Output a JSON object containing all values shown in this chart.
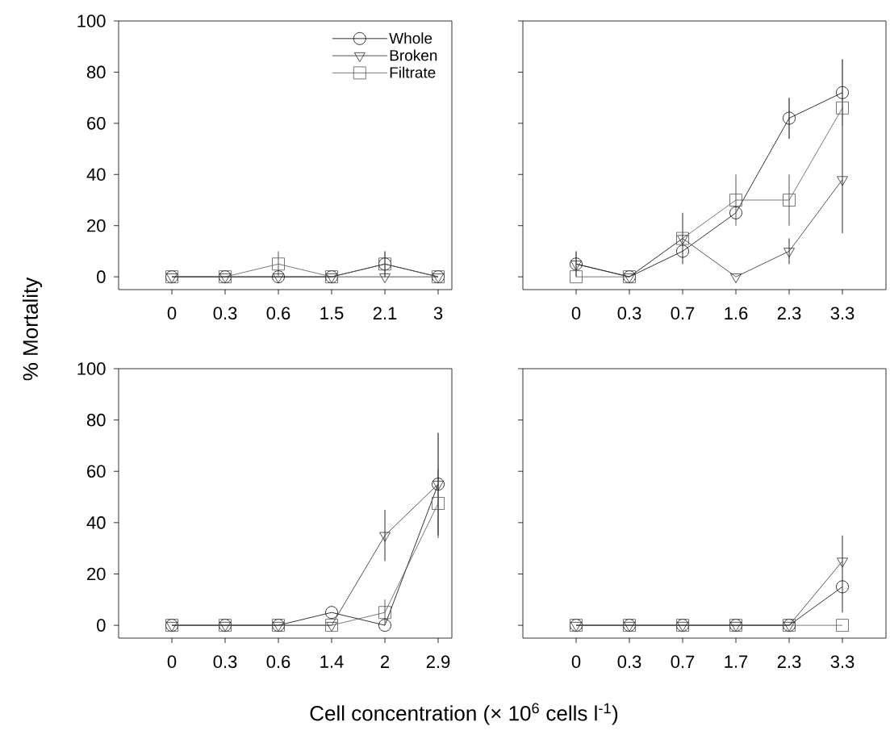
{
  "chart_data": [
    {
      "type": "line",
      "ylabel": "% Mortality",
      "categories": [
        "0",
        "0.3",
        "0.6",
        "1.5",
        "2.1",
        "3"
      ],
      "ylim": [
        -5,
        100
      ],
      "yticks": [
        0,
        20,
        40,
        60,
        80,
        100
      ],
      "legend": "top right",
      "series": [
        {
          "name": "Whole",
          "color": "#000000",
          "marker": "circle",
          "values": [
            0,
            0,
            0,
            0,
            5,
            0
          ],
          "errors": [
            null,
            null,
            null,
            null,
            5,
            null
          ]
        },
        {
          "name": "Broken",
          "color": "#2b2b2b",
          "marker": "triangle",
          "values": [
            0,
            0,
            0,
            0,
            0,
            0
          ]
        },
        {
          "name": "Filtrate",
          "color": "#555555",
          "marker": "square",
          "values": [
            0,
            0,
            5,
            0,
            5,
            0
          ],
          "errors": [
            null,
            null,
            5,
            null,
            null,
            null
          ]
        }
      ]
    },
    {
      "type": "line",
      "categories": [
        "0",
        "0.3",
        "0.7",
        "1.6",
        "2.3",
        "3.3"
      ],
      "ylim": [
        -5,
        100
      ],
      "yticks": [
        0,
        20,
        40,
        60,
        80,
        100
      ],
      "tick_labels": "x",
      "series": [
        {
          "color": "#000000",
          "marker": "circle",
          "values": [
            5,
            0,
            10,
            25,
            62,
            72
          ],
          "errors": [
            5,
            null,
            null,
            null,
            8,
            13
          ]
        },
        {
          "color": "#2b2b2b",
          "marker": "triangle",
          "values": [
            5,
            0,
            15,
            0,
            10,
            38
          ],
          "errors": [
            null,
            null,
            10,
            null,
            5,
            21
          ]
        },
        {
          "color": "#555555",
          "marker": "square",
          "values": [
            0,
            0,
            15,
            30,
            30,
            66
          ],
          "errors": [
            null,
            null,
            null,
            10,
            10,
            null
          ]
        }
      ]
    },
    {
      "type": "line",
      "xlabel": "Cell concentration (× 10$^{6}$ cells l$^{-1}$)",
      "categories": [
        "0",
        "0.3",
        "0.6",
        "1.4",
        "2",
        "2.9"
      ],
      "ylim": [
        -5,
        100
      ],
      "yticks": [
        0,
        20,
        40,
        60,
        80,
        100
      ],
      "series": [
        {
          "color": "#000000",
          "marker": "circle",
          "values": [
            0,
            0,
            0,
            5,
            0,
            55
          ],
          "errors": [
            null,
            null,
            null,
            null,
            null,
            20
          ]
        },
        {
          "color": "#2b2b2b",
          "marker": "triangle",
          "values": [
            0,
            0,
            0,
            0,
            35,
            55
          ],
          "errors": [
            null,
            null,
            null,
            null,
            10,
            null
          ]
        },
        {
          "color": "#555555",
          "marker": "square",
          "values": [
            0,
            0,
            0,
            0,
            5,
            47.5
          ],
          "errors": [
            null,
            null,
            null,
            null,
            5,
            13.5
          ]
        }
      ]
    },
    {
      "type": "line",
      "categories": [
        "0",
        "0.3",
        "0.7",
        "1.7",
        "2.3",
        "3.3"
      ],
      "ylim": [
        -5,
        100
      ],
      "yticks": [
        0,
        20,
        40,
        60,
        80,
        100
      ],
      "tick_labels": "x",
      "series": [
        {
          "color": "#000000",
          "marker": "circle",
          "values": [
            0,
            0,
            0,
            0,
            0,
            15
          ]
        },
        {
          "color": "#2b2b2b",
          "marker": "triangle",
          "values": [
            0,
            0,
            0,
            0,
            0,
            25
          ],
          "errors": [
            null,
            null,
            null,
            null,
            null,
            [
              5,
              35
            ]
          ]
        },
        {
          "color": "#555555",
          "marker": "square",
          "values": [
            0,
            0,
            0,
            0,
            0,
            0
          ]
        }
      ]
    }
  ]
}
